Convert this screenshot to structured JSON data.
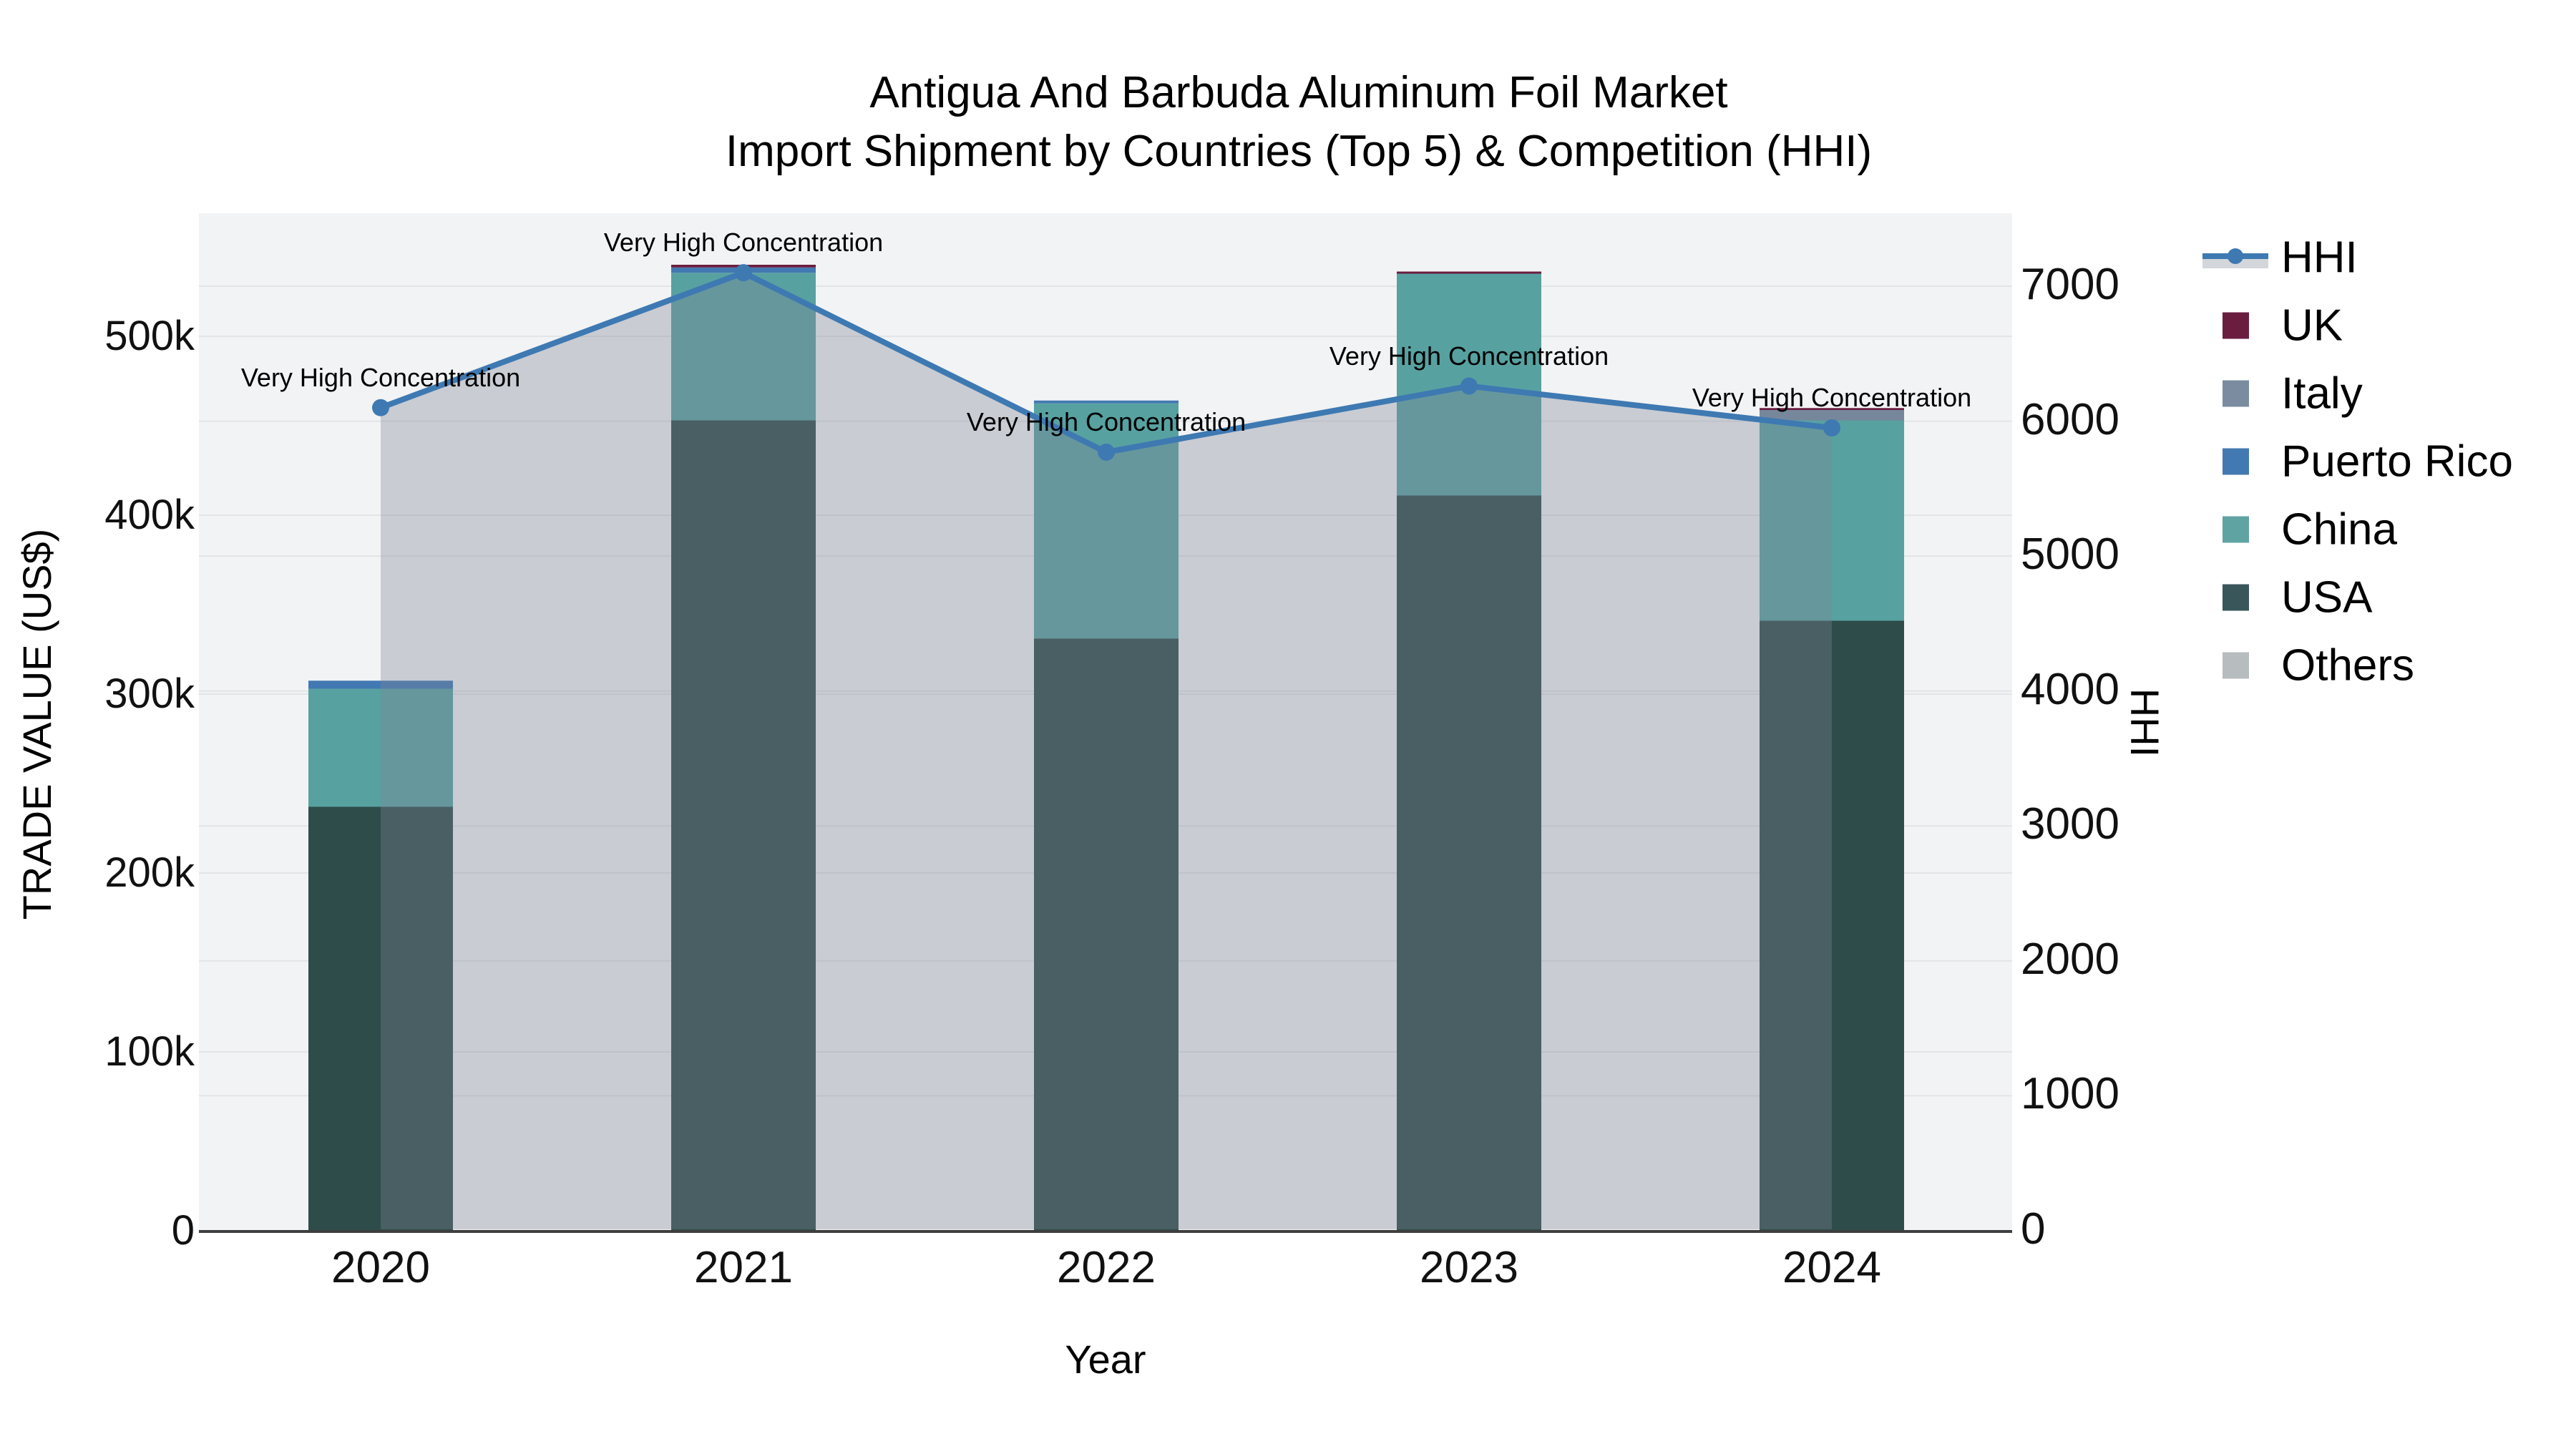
{
  "title": {
    "line1": "Antigua And Barbuda Aluminum Foil Market",
    "line2": "Import Shipment by Countries (Top 5) & Competition (HHI)"
  },
  "chart_data": {
    "type": "bar+line",
    "categories": [
      "2020",
      "2021",
      "2022",
      "2023",
      "2024"
    ],
    "bar_series": [
      {
        "name": "USA",
        "color": "#2e4c4a",
        "values": [
          237000,
          453000,
          331000,
          411000,
          341000
        ]
      },
      {
        "name": "China",
        "color": "#58a1a1",
        "values": [
          66000,
          82500,
          131500,
          124000,
          112000
        ]
      },
      {
        "name": "Puerto Rico",
        "color": "#4379b2",
        "values": [
          4500,
          3000,
          1600,
          0,
          0
        ]
      },
      {
        "name": "Italy",
        "color": "#77879b",
        "values": [
          0,
          0,
          0,
          0,
          5800
        ]
      },
      {
        "name": "UK",
        "color": "#6b1d40",
        "values": [
          0,
          1500,
          0,
          1200,
          1100
        ]
      },
      {
        "name": "Others",
        "color": "#b7bdbe",
        "values": [
          0,
          0,
          0,
          0,
          0
        ]
      }
    ],
    "line_series": {
      "name": "HHI",
      "color": "#3e79b2",
      "fill_color": "rgba(125,133,148,0.35)",
      "values": [
        6100,
        7100,
        5770,
        6260,
        5950
      ]
    },
    "annotations": [
      {
        "x": "2020",
        "text": "Very High Concentration"
      },
      {
        "x": "2021",
        "text": "Very High Concentration"
      },
      {
        "x": "2022",
        "text": "Very High Concentration"
      },
      {
        "x": "2023",
        "text": "Very High Concentration"
      },
      {
        "x": "2024",
        "text": "Very High Concentration"
      }
    ],
    "y_left": {
      "title": "TRADE VALUE (US$)",
      "tick_labels": [
        "0",
        "100k",
        "200k",
        "300k",
        "400k",
        "500k"
      ],
      "tick_values": [
        0,
        100000,
        200000,
        300000,
        400000,
        500000
      ],
      "range": [
        0,
        568800
      ]
    },
    "y_right": {
      "title": "HHI",
      "tick_labels": [
        "0",
        "1000",
        "2000",
        "3000",
        "4000",
        "5000",
        "6000",
        "7000"
      ],
      "tick_values": [
        0,
        1000,
        2000,
        3000,
        4000,
        5000,
        6000,
        7000
      ],
      "range": [
        0,
        7540
      ]
    },
    "x_axis": {
      "title": "Year"
    },
    "grid": "on",
    "legend_position": "right",
    "plot_bg": "#f2f3f4",
    "grid_color": "#e2e4e7",
    "axisline_color": "#3f3f3f"
  },
  "legend": {
    "items": [
      {
        "label": "HHI",
        "type": "line",
        "color": "#3e79b2"
      },
      {
        "label": "UK",
        "type": "swatch",
        "color": "#6b1d40"
      },
      {
        "label": "Italy",
        "type": "swatch",
        "color": "#7b8ca0"
      },
      {
        "label": "Puerto Rico",
        "type": "swatch",
        "color": "#4379b2"
      },
      {
        "label": "China",
        "type": "swatch",
        "color": "#5fa3a3"
      },
      {
        "label": "USA",
        "type": "swatch",
        "color": "#39565a"
      },
      {
        "label": "Others",
        "type": "swatch",
        "color": "#b7bdbe"
      }
    ]
  }
}
